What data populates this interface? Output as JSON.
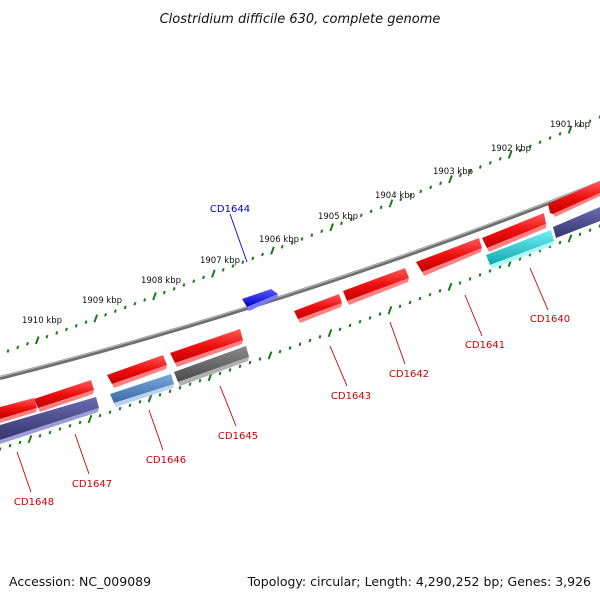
{
  "title": "Clostridium difficile 630, complete genome",
  "footer": {
    "accession": "Accession: NC_009089",
    "summary": "Topology: circular; Length: 4,290,252 bp; Genes: 3,926"
  },
  "colors": {
    "forward_gene": "#ee1111",
    "forward_gene_light": "#ff7777",
    "reverse_gene": "#ee1111",
    "highlight_gene": "#1a1aee",
    "label_red": "#cc0000",
    "label_blue": "#0000cc",
    "backbone": "#808080",
    "ticks": "#1b7a1b",
    "slate": "#4a4a8a",
    "steel": "#4a7ab8",
    "gray_feature": "#606060",
    "cyan_feature": "#20c8d0"
  },
  "scale": {
    "unit": "kbp",
    "labeled_ticks": [
      1901,
      1902,
      1903,
      1904,
      1905,
      1906,
      1907,
      1908,
      1909,
      1910
    ],
    "tick_labels": [
      "1901 kbp",
      "1902 kbp",
      "1903 kbp",
      "1904 kbp",
      "1905 kbp",
      "1906 kbp",
      "1907 kbp",
      "1908 kbp",
      "1909 kbp",
      "1910 kbp"
    ]
  },
  "genes": [
    {
      "label": "CD1640",
      "strand": "-"
    },
    {
      "label": "CD1641",
      "strand": "-"
    },
    {
      "label": "CD1642",
      "strand": "-"
    },
    {
      "label": "CD1643",
      "strand": "-"
    },
    {
      "label": "CD1644",
      "strand": "+"
    },
    {
      "label": "CD1645",
      "strand": "-"
    },
    {
      "label": "CD1646",
      "strand": "-"
    },
    {
      "label": "CD1647",
      "strand": "-"
    },
    {
      "label": "CD1648",
      "strand": "-"
    }
  ]
}
